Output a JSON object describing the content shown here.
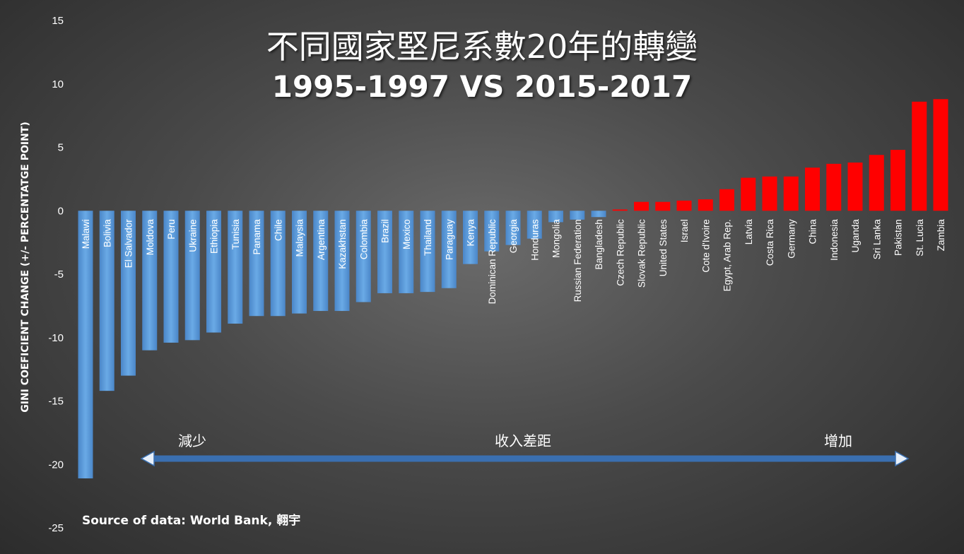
{
  "chart_data": {
    "type": "bar",
    "title": "不同國家堅尼系數20年的轉變",
    "subtitle": "1995-1997 VS 2015-2017",
    "ylabel": "GINI COEFICIENT CHANGE (+/- PERCENTATGE POINT)",
    "xlabel": "",
    "ylim": [
      -25,
      15
    ],
    "yticks": [
      15,
      10,
      5,
      0,
      -5,
      -10,
      -15,
      -20,
      -25
    ],
    "grid": false,
    "categories": [
      "Malawi",
      "Bolivia",
      "El Salvador",
      "Moldova",
      "Peru",
      "Ukraine",
      "Ethiopia",
      "Tunisia",
      "Panama",
      "Chile",
      "Malaysia",
      "Argentina",
      "Kazakhstan",
      "Colombia",
      "Brazil",
      "Mexico",
      "Thailand",
      "Paraguay",
      "Kenya",
      "Dominican Republic",
      "Georgia",
      "Honduras",
      "Mongolia",
      "Russian Federation",
      "Bangladesh",
      "Czech Republic",
      "Slovak Republic",
      "United States",
      "Israel",
      "Cote d'Ivoire",
      "Egypt, Arab Rep.",
      "Latvia",
      "Costa Rica",
      "Germany",
      "China",
      "Indonesia",
      "Uganda",
      "Sri Lanka",
      "Pakistan",
      "St. Lucia",
      "Zambia"
    ],
    "values": [
      -21.1,
      -14.2,
      -13.0,
      -11.0,
      -10.4,
      -10.2,
      -9.6,
      -8.9,
      -8.3,
      -8.3,
      -8.1,
      -7.9,
      -7.9,
      -7.2,
      -6.5,
      -6.5,
      -6.4,
      -6.1,
      -4.2,
      -3.2,
      -2.7,
      -2.2,
      -0.9,
      -0.7,
      -0.5,
      0.1,
      0.7,
      0.7,
      0.8,
      0.9,
      1.7,
      2.6,
      2.7,
      2.7,
      3.4,
      3.7,
      3.8,
      4.4,
      4.8,
      8.6,
      8.8
    ],
    "colors": {
      "negative": "#5b9bd5",
      "positive": "#ff0000"
    }
  },
  "annotations": {
    "decrease": "減少",
    "income_gap": "收入差距",
    "increase": "增加"
  },
  "source": "Source of data: World Bank, 翱宇"
}
